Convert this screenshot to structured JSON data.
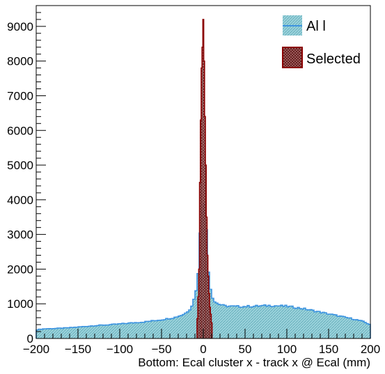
{
  "chart_data": {
    "type": "histogram",
    "title": "",
    "xlabel": "Bottom: Ecal cluster x - track x @ Ecal (mm)",
    "ylabel": "",
    "xlim": [
      -200,
      200
    ],
    "ylim": [
      0,
      9600
    ],
    "bin_width": 2.5,
    "x_ticks": [
      -200,
      -150,
      -100,
      -50,
      0,
      50,
      100,
      150,
      200
    ],
    "x_tick_labels": [
      "−200",
      "−150",
      "−100",
      "−50",
      "0",
      "50",
      "100",
      "150",
      "200"
    ],
    "y_ticks": [
      0,
      1000,
      2000,
      3000,
      4000,
      5000,
      6000,
      7000,
      8000,
      9000
    ],
    "y_tick_labels": [
      "0",
      "1000",
      "2000",
      "3000",
      "4000",
      "5000",
      "6000",
      "7000",
      "8000",
      "9000"
    ],
    "legend_position": "top-right",
    "series": [
      {
        "name": "All",
        "legend_label": "Al l",
        "color": "#3d94e0",
        "fill": "#9cd3dc",
        "anchors": [
          [
            -200,
            250
          ],
          [
            -190,
            280
          ],
          [
            -175,
            290
          ],
          [
            -160,
            310
          ],
          [
            -150,
            330
          ],
          [
            -130,
            370
          ],
          [
            -110,
            400
          ],
          [
            -90,
            440
          ],
          [
            -70,
            480
          ],
          [
            -50,
            540
          ],
          [
            -35,
            600
          ],
          [
            -25,
            680
          ],
          [
            -20,
            750
          ],
          [
            -15,
            880
          ],
          [
            -12,
            1050
          ],
          [
            -10,
            1250
          ],
          [
            -8,
            1500
          ],
          [
            -6,
            1900
          ],
          [
            -5,
            2200
          ],
          [
            -4,
            3000
          ],
          [
            -3,
            3400
          ],
          [
            -1.5,
            3700
          ],
          [
            0,
            3900
          ],
          [
            1.5,
            3800
          ],
          [
            3,
            3600
          ],
          [
            4,
            3000
          ],
          [
            5,
            2400
          ],
          [
            7,
            1700
          ],
          [
            9,
            1400
          ],
          [
            11,
            1200
          ],
          [
            14,
            1050
          ],
          [
            18,
            1000
          ],
          [
            25,
            940
          ],
          [
            40,
            920
          ],
          [
            60,
            930
          ],
          [
            80,
            950
          ],
          [
            100,
            930
          ],
          [
            120,
            860
          ],
          [
            140,
            760
          ],
          [
            160,
            660
          ],
          [
            180,
            560
          ],
          [
            190,
            500
          ],
          [
            200,
            400
          ]
        ]
      },
      {
        "name": "Selected",
        "legend_label": "Selected",
        "color": "#8b0000",
        "fill": "#8b3a3a",
        "anchors": [
          [
            -7.5,
            350
          ],
          [
            -6.5,
            800
          ],
          [
            -5,
            2000
          ],
          [
            -4,
            4500
          ],
          [
            -3,
            6300
          ],
          [
            -2,
            7800
          ],
          [
            -1,
            8400
          ],
          [
            0,
            9200
          ],
          [
            1,
            8000
          ],
          [
            2,
            6400
          ],
          [
            3,
            5000
          ],
          [
            4,
            3500
          ],
          [
            5,
            2400
          ],
          [
            6.5,
            1500
          ],
          [
            8,
            900
          ],
          [
            9.5,
            600
          ],
          [
            10.5,
            300
          ]
        ]
      }
    ]
  }
}
